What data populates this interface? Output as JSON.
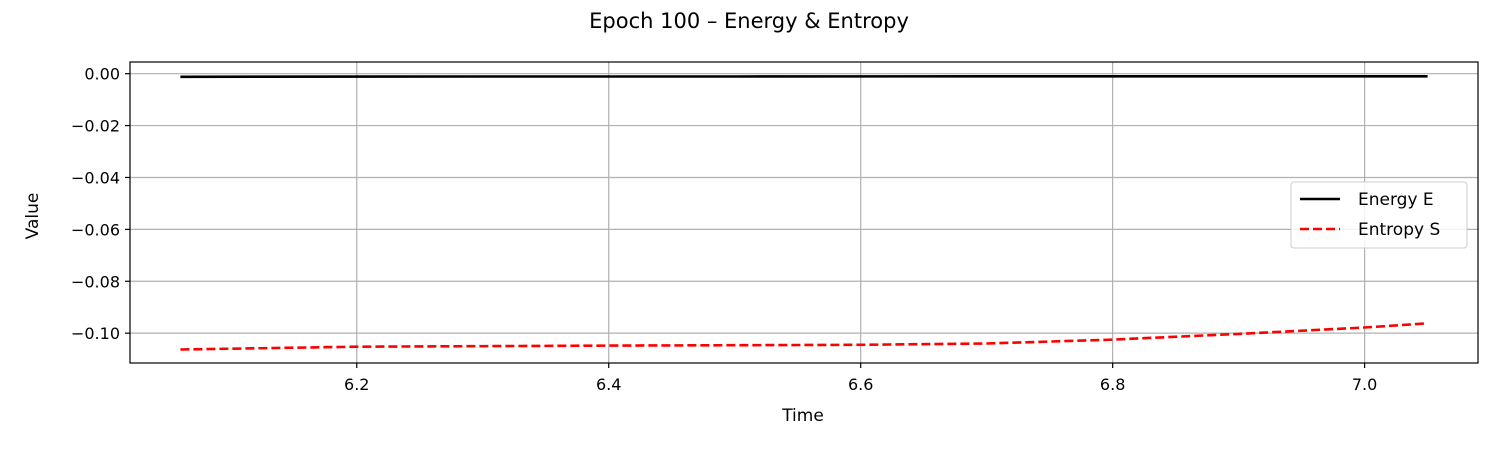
{
  "chart_data": {
    "type": "line",
    "title": "Epoch 100 – Energy & Entropy",
    "xlabel": "Time",
    "ylabel": "Value",
    "xlim": [
      6.02,
      7.09
    ],
    "ylim": [
      -0.1115,
      0.0045
    ],
    "xticks": [
      6.2,
      6.4,
      6.6,
      6.8,
      7.0
    ],
    "xtick_labels": [
      "6.2",
      "6.4",
      "6.6",
      "6.8",
      "7.0"
    ],
    "yticks": [
      0.0,
      -0.02,
      -0.04,
      -0.06,
      -0.08,
      -0.1
    ],
    "ytick_labels": [
      "0.00",
      "−0.02",
      "−0.04",
      "−0.06",
      "−0.08",
      "−0.10"
    ],
    "grid": true,
    "legend_position": "center-right",
    "series": [
      {
        "name": "Energy E",
        "color": "#000000",
        "style": "solid",
        "x": [
          6.06,
          6.3,
          6.5,
          6.7,
          6.9,
          7.05
        ],
        "y": [
          -0.0012,
          -0.0011,
          -0.0011,
          -0.001,
          -0.001,
          -0.001
        ]
      },
      {
        "name": "Entropy S",
        "color": "#ff0000",
        "style": "dashed",
        "x": [
          6.06,
          6.2,
          6.4,
          6.6,
          6.7,
          6.8,
          6.9,
          7.0,
          7.05
        ],
        "y": [
          -0.1063,
          -0.1052,
          -0.1048,
          -0.1045,
          -0.104,
          -0.1025,
          -0.1003,
          -0.0978,
          -0.0962
        ]
      }
    ]
  }
}
